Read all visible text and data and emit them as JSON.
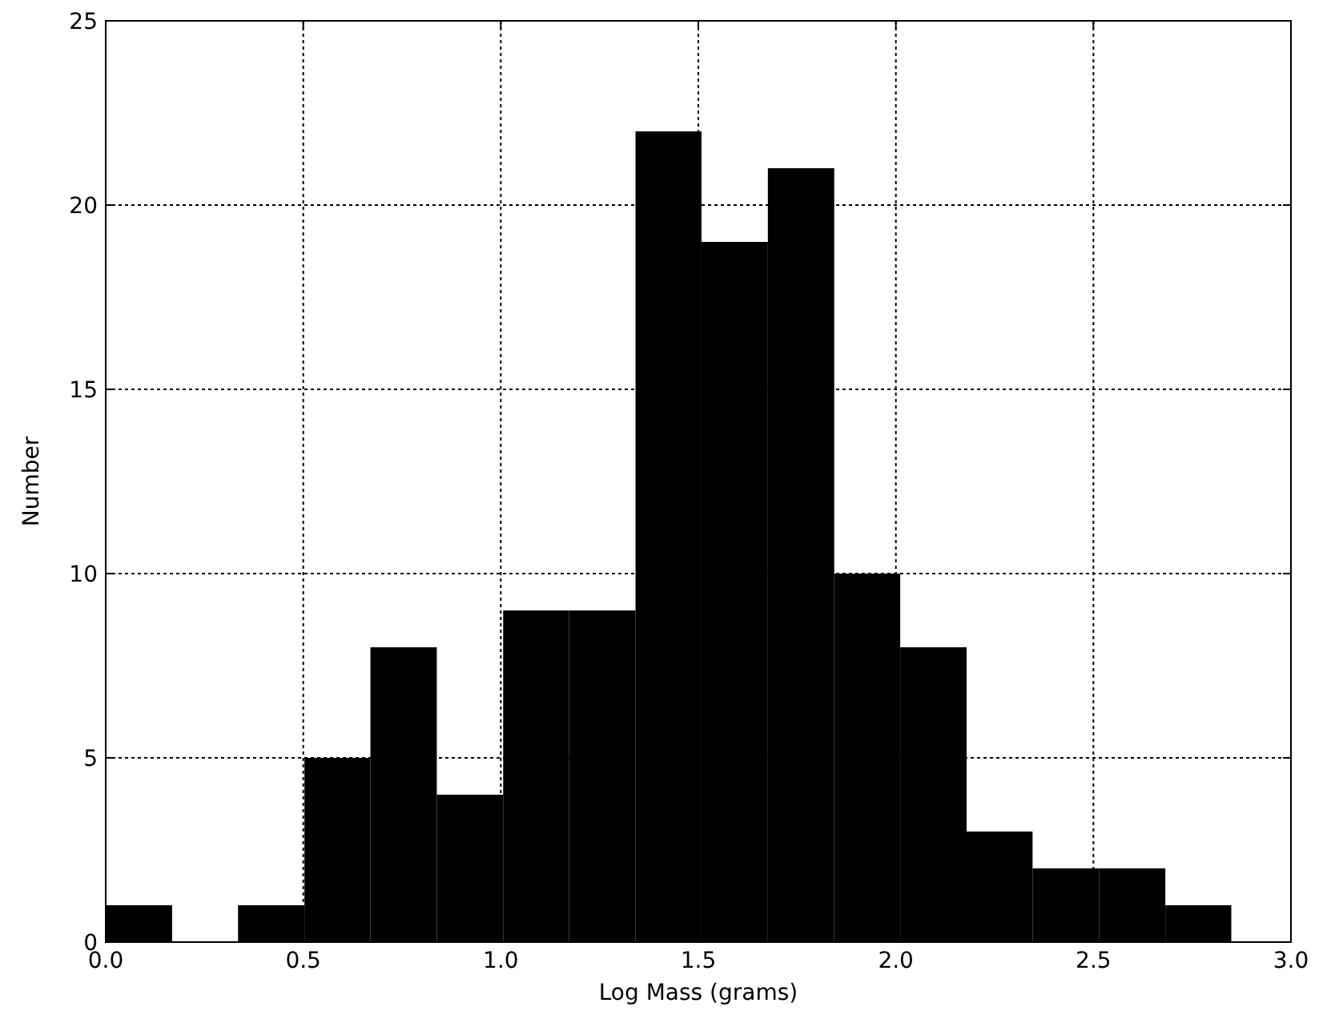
{
  "chart_data": {
    "type": "histogram",
    "xlabel": "Log Mass (grams)",
    "ylabel": "Number",
    "bins": [
      0,
      0.168,
      0.335,
      0.503,
      0.67,
      0.838,
      1.006,
      1.173,
      1.341,
      1.508,
      1.676,
      1.844,
      2.011,
      2.179,
      2.346,
      2.514,
      2.682,
      2.849
    ],
    "values": [
      1,
      0,
      1,
      5,
      8,
      4,
      9,
      9,
      22,
      19,
      21,
      10,
      8,
      3,
      2,
      2,
      1
    ],
    "color": "#000000",
    "xlim": [
      0,
      3
    ],
    "xticks": [
      {
        "value": 0,
        "label": "0.0"
      },
      {
        "value": 0.5,
        "label": "0.5"
      },
      {
        "value": 1,
        "label": "1.0"
      },
      {
        "value": 1.5,
        "label": "1.5"
      },
      {
        "value": 2,
        "label": "2.0"
      },
      {
        "value": 2.5,
        "label": "2.5"
      },
      {
        "value": 3,
        "label": "3.0"
      }
    ],
    "ylim": [
      0,
      25
    ],
    "yticks": [
      0,
      5,
      10,
      15,
      20,
      25
    ],
    "grid": true
  }
}
